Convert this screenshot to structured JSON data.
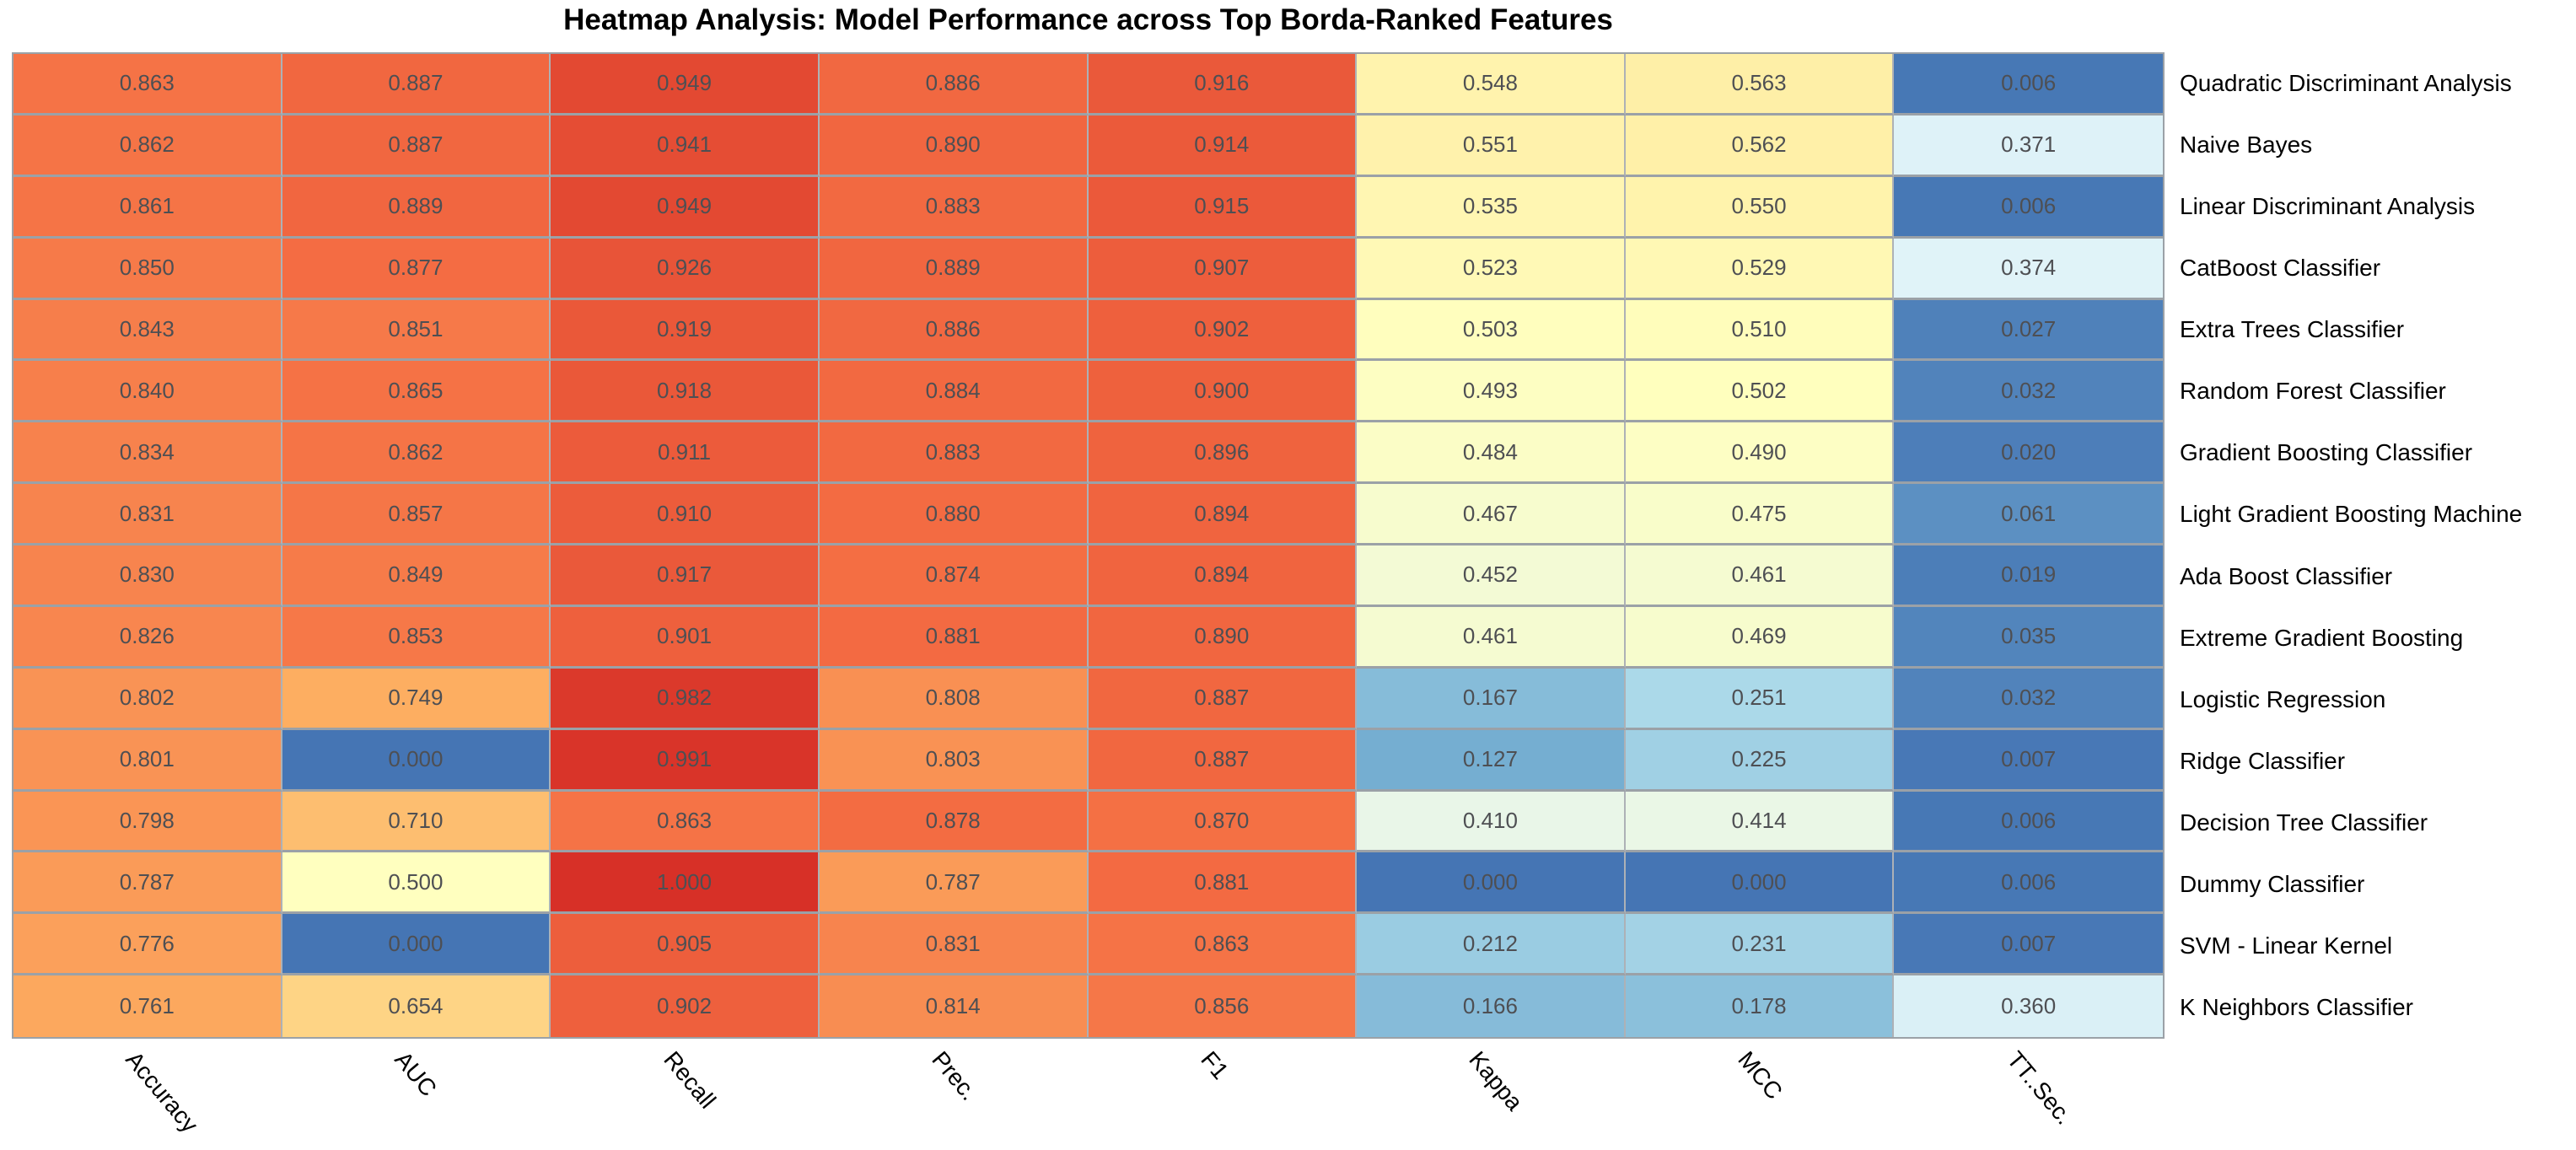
{
  "title": "Heatmap Analysis: Model Performance across Top Borda-Ranked Features",
  "chart_data": {
    "type": "heatmap",
    "title": "Heatmap Analysis: Model Performance across Top Borda-Ranked Features",
    "columns": [
      "Accuracy",
      "AUC",
      "Recall",
      "Prec.",
      "F1",
      "Kappa",
      "MCC",
      "TT..Sec."
    ],
    "rows": [
      "Quadratic Discriminant Analysis",
      "Naive Bayes",
      "Linear Discriminant Analysis",
      "CatBoost Classifier",
      "Extra Trees Classifier",
      "Random Forest Classifier",
      "Gradient Boosting Classifier",
      "Light Gradient Boosting Machine",
      "Ada Boost Classifier",
      "Extreme Gradient Boosting",
      "Logistic Regression",
      "Ridge Classifier",
      "Decision Tree Classifier",
      "Dummy Classifier",
      "SVM - Linear Kernel",
      "K Neighbors Classifier"
    ],
    "values": [
      [
        0.863,
        0.887,
        0.949,
        0.886,
        0.916,
        0.548,
        0.563,
        0.006
      ],
      [
        0.862,
        0.887,
        0.941,
        0.89,
        0.914,
        0.551,
        0.562,
        0.371
      ],
      [
        0.861,
        0.889,
        0.949,
        0.883,
        0.915,
        0.535,
        0.55,
        0.006
      ],
      [
        0.85,
        0.877,
        0.926,
        0.889,
        0.907,
        0.523,
        0.529,
        0.374
      ],
      [
        0.843,
        0.851,
        0.919,
        0.886,
        0.902,
        0.503,
        0.51,
        0.027
      ],
      [
        0.84,
        0.865,
        0.918,
        0.884,
        0.9,
        0.493,
        0.502,
        0.032
      ],
      [
        0.834,
        0.862,
        0.911,
        0.883,
        0.896,
        0.484,
        0.49,
        0.02
      ],
      [
        0.831,
        0.857,
        0.91,
        0.88,
        0.894,
        0.467,
        0.475,
        0.061
      ],
      [
        0.83,
        0.849,
        0.917,
        0.874,
        0.894,
        0.452,
        0.461,
        0.019
      ],
      [
        0.826,
        0.853,
        0.901,
        0.881,
        0.89,
        0.461,
        0.469,
        0.035
      ],
      [
        0.802,
        0.749,
        0.982,
        0.808,
        0.887,
        0.167,
        0.251,
        0.032
      ],
      [
        0.801,
        0.0,
        0.991,
        0.803,
        0.887,
        0.127,
        0.225,
        0.007
      ],
      [
        0.798,
        0.71,
        0.863,
        0.878,
        0.87,
        0.41,
        0.414,
        0.006
      ],
      [
        0.787,
        0.5,
        1.0,
        0.787,
        0.881,
        0.0,
        0.0,
        0.006
      ],
      [
        0.776,
        0.0,
        0.905,
        0.831,
        0.863,
        0.212,
        0.231,
        0.007
      ],
      [
        0.761,
        0.654,
        0.902,
        0.814,
        0.856,
        0.166,
        0.178,
        0.36
      ]
    ],
    "value_format": "3-decimals",
    "value_range": [
      0,
      1
    ],
    "grid": true,
    "legend": "none",
    "colorscale": [
      {
        "pos": 0.0,
        "color": "#4575b4"
      },
      {
        "pos": 0.125,
        "color": "#74add1"
      },
      {
        "pos": 0.25,
        "color": "#abd9e9"
      },
      {
        "pos": 0.375,
        "color": "#e0f3f8"
      },
      {
        "pos": 0.5,
        "color": "#ffffbf"
      },
      {
        "pos": 0.625,
        "color": "#fee090"
      },
      {
        "pos": 0.75,
        "color": "#fdae61"
      },
      {
        "pos": 0.875,
        "color": "#f46d43"
      },
      {
        "pos": 1.0,
        "color": "#d73027"
      }
    ],
    "cell_text_color": "#4e4f53",
    "grid_line_color": "#9ba1a7"
  }
}
